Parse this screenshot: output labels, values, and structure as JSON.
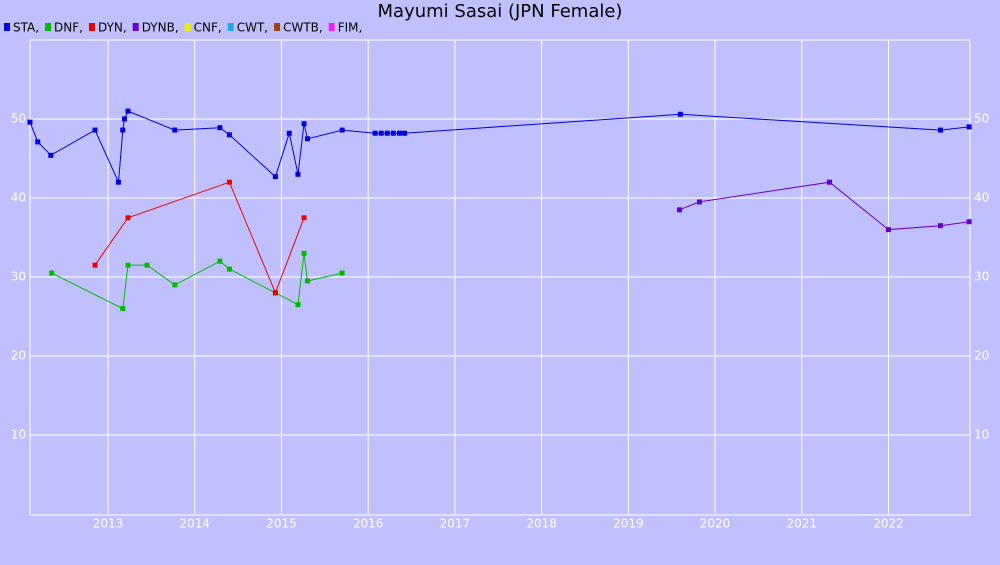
{
  "chart_data": {
    "type": "line",
    "title": "Mayumi Sasai (JPN Female)",
    "xlim": [
      2012.1,
      2022.94
    ],
    "xticks": [
      2013,
      2014,
      2015,
      2016,
      2017,
      2018,
      2019,
      2020,
      2021,
      2022
    ],
    "ylim": [
      0,
      60
    ],
    "yticks": [
      10,
      20,
      30,
      40,
      50
    ],
    "grid": true,
    "series": [
      {
        "name": "STA,",
        "color": "#0000dd",
        "x": [
          2012.1,
          2012.19,
          2012.34,
          2012.85,
          2013.12,
          2013.17,
          2013.19,
          2013.23,
          2013.77,
          2014.29,
          2014.4,
          2014.93,
          2015.09,
          2015.19,
          2015.26,
          2015.3,
          2015.7,
          2016.08,
          2016.15,
          2016.22,
          2016.29,
          2016.36,
          2016.42,
          2019.6,
          2022.6,
          2022.93
        ],
        "values": [
          49.6,
          47.1,
          45.4,
          48.6,
          42,
          48.6,
          50,
          51,
          48.6,
          48.9,
          48,
          42.7,
          48.2,
          43,
          49.4,
          47.5,
          48.6,
          48.2,
          48.2,
          48.2,
          48.2,
          48.2,
          48.2,
          50.6,
          48.6,
          49
        ]
      },
      {
        "name": "DNF,",
        "color": "#00bb00",
        "x": [
          2012.35,
          2013.17,
          2013.23,
          2013.45,
          2013.77,
          2014.29,
          2014.4,
          2014.93,
          2015.19,
          2015.26,
          2015.3,
          2015.7
        ],
        "values": [
          30.5,
          26,
          31.5,
          31.5,
          29,
          32,
          31,
          28,
          26.5,
          33,
          29.5,
          30.5
        ]
      },
      {
        "name": "DYN,",
        "color": "#ee0000",
        "x": [
          2012.85,
          2013.23,
          2014.4,
          2014.93,
          2015.26
        ],
        "values": [
          31.5,
          37.5,
          42,
          28,
          37.5
        ]
      },
      {
        "name": "DYNB,",
        "color": "#6600cc",
        "x": [
          2019.59,
          2019.82,
          2021.32,
          2022.0,
          2022.6,
          2022.93
        ],
        "values": [
          38.5,
          39.5,
          42,
          36,
          36.5,
          37
        ]
      },
      {
        "name": "CNF,",
        "color": "#eeee00",
        "x": [],
        "values": []
      },
      {
        "name": "CWT,",
        "color": "#22aadd",
        "x": [],
        "values": []
      },
      {
        "name": "CWTB,",
        "color": "#994411",
        "x": [],
        "values": []
      },
      {
        "name": "FIM,",
        "color": "#ee22ee",
        "x": [],
        "values": []
      }
    ]
  }
}
